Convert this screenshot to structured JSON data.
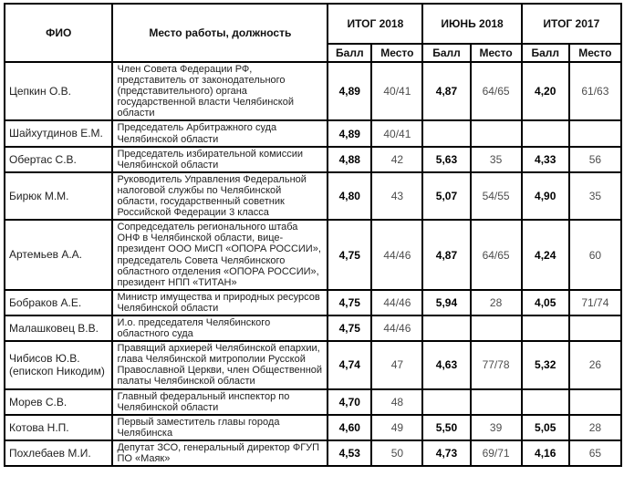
{
  "table": {
    "headers": {
      "fio": "ФИО",
      "job": "Место работы, должность",
      "group_2018_total": "ИТОГ 2018",
      "group_2018_june": "ИЮНЬ 2018",
      "group_2017_total": "ИТОГ 2017",
      "score": "Балл",
      "place": "Место"
    },
    "rows": [
      {
        "name": "Цепкин О.В.",
        "job": "Член Совета Федерации РФ, представитель от законодательного (представительного) органа государственной власти Челябинской области",
        "cells": [
          "4,89",
          "40/41",
          "4,87",
          "64/65",
          "4,20",
          "61/63"
        ]
      },
      {
        "name": "Шайхутдинов Е.М.",
        "job": "Председатель Арбитражного суда Челябинской области",
        "cells": [
          "4,89",
          "40/41",
          "",
          "",
          "",
          ""
        ]
      },
      {
        "name": "Обертас С.В.",
        "job": "Председатель избирательной комиссии Челябинской области",
        "cells": [
          "4,88",
          "42",
          "5,63",
          "35",
          "4,33",
          "56"
        ]
      },
      {
        "name": "Бирюк М.М.",
        "job": "Руководитель Управления Федеральной налоговой службы по Челябинской области, государственный советник Российской Федерации 3 класса",
        "cells": [
          "4,80",
          "43",
          "5,07",
          "54/55",
          "4,90",
          "35"
        ]
      },
      {
        "name": "Артемьев А.А.",
        "job": "Сопредседатель регионального штаба ОНФ в Челябинской области, вице-президент ООО МиСП «ОПОРА РОССИИ», председатель Совета Челябинского областного отделения «ОПОРА РОССИИ», президент НПП «ТИТАН»",
        "cells": [
          "4,75",
          "44/46",
          "4,87",
          "64/65",
          "4,24",
          "60"
        ]
      },
      {
        "name": "Бобраков А.Е.",
        "job": "Министр имущества и природных ресурсов Челябинской области",
        "cells": [
          "4,75",
          "44/46",
          "5,94",
          "28",
          "4,05",
          "71/74"
        ]
      },
      {
        "name": "Малашковец В.В.",
        "job": "И.о. председателя Челябинского областного суда",
        "cells": [
          "4,75",
          "44/46",
          "",
          "",
          "",
          ""
        ]
      },
      {
        "name": "Чибисов Ю.В. (епископ Никодим)",
        "job": "Правящий архиерей Челябинской епархии, глава Челябинской митрополии Русской Православной Церкви, член Общественной палаты Челябинской области",
        "cells": [
          "4,74",
          "47",
          "4,63",
          "77/78",
          "5,32",
          "26"
        ]
      },
      {
        "name": "Морев С.В.",
        "job": "Главный федеральный инспектор по Челябинской области",
        "cells": [
          "4,70",
          "48",
          "",
          "",
          "",
          ""
        ]
      },
      {
        "name": "Котова Н.П.",
        "job": "Первый заместитель главы города Челябинска",
        "cells": [
          "4,60",
          "49",
          "5,50",
          "39",
          "5,05",
          "28"
        ]
      },
      {
        "name": "Похлебаев М.И.",
        "job": "Депутат ЗСО, генеральный директор ФГУП ПО «Маяк»",
        "cells": [
          "4,53",
          "50",
          "4,73",
          "69/71",
          "4,16",
          "65"
        ]
      }
    ]
  }
}
